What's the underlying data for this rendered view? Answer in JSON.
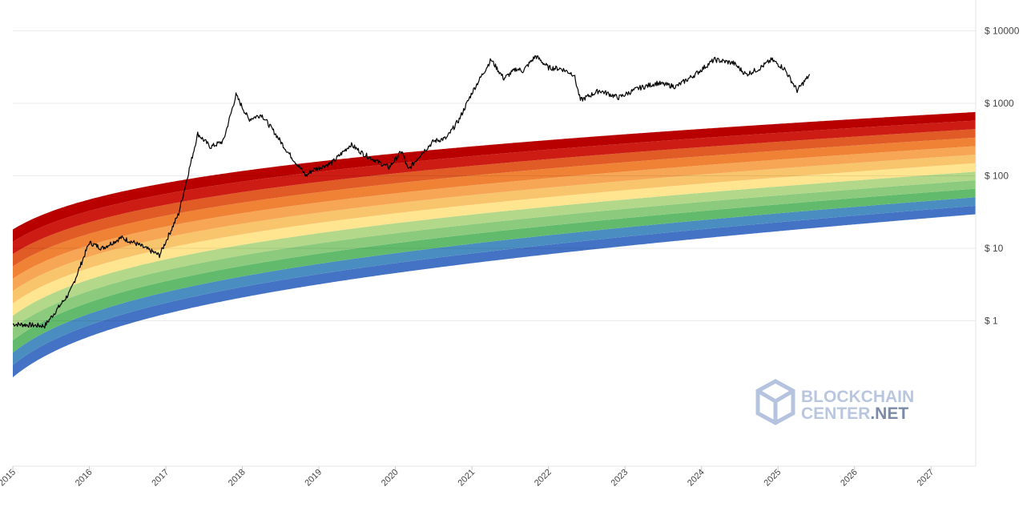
{
  "chart_data": {
    "type": "line",
    "title": "",
    "xlabel": "",
    "ylabel": "",
    "y_scale": "log",
    "y_ticks": [
      {
        "value": 10000,
        "label": "$ 10000"
      },
      {
        "value": 1000,
        "label": "$ 1000"
      },
      {
        "value": 100,
        "label": "$ 100"
      },
      {
        "value": 10,
        "label": "$ 10"
      },
      {
        "value": 1,
        "label": "$ 1"
      }
    ],
    "x_ticks": [
      "2015",
      "2016",
      "2017",
      "2018",
      "2019",
      "2020",
      "2021",
      "2022",
      "2023",
      "2024",
      "2025",
      "2026",
      "2027"
    ],
    "x_range": [
      "2015-01",
      "2027-08"
    ],
    "grid": "horizontal",
    "rainbow_bands": [
      "#4472c4",
      "#4a8ec1",
      "#62bb6d",
      "#8ccb7d",
      "#b4d88a",
      "#ffe58f",
      "#f8c46c",
      "#f6a654",
      "#f08235",
      "#e05b25",
      "#cc1c13",
      "#b90000"
    ],
    "series": [
      {
        "color": "#000000",
        "x": [
          "2015-01",
          "2015-06",
          "2015-10",
          "2016-01",
          "2016-03",
          "2016-06",
          "2016-08",
          "2016-12",
          "2017-03",
          "2017-06",
          "2017-08",
          "2017-10",
          "2017-12",
          "2018-02",
          "2018-04",
          "2018-06",
          "2018-08",
          "2018-11",
          "2018-12",
          "2019-03",
          "2019-06",
          "2019-08",
          "2019-10",
          "2019-12",
          "2020-02",
          "2020-03",
          "2020-05",
          "2020-07",
          "2020-09",
          "2020-11",
          "2021-01",
          "2021-02",
          "2021-04",
          "2021-06",
          "2021-08",
          "2021-09",
          "2021-11",
          "2022-01",
          "2022-03",
          "2022-05",
          "2022-06",
          "2022-09",
          "2022-12",
          "2023-03",
          "2023-06",
          "2023-09",
          "2023-12",
          "2024-03",
          "2024-06",
          "2024-08",
          "2024-10",
          "2024-12",
          "2025-02",
          "2025-04",
          "2025-06"
        ],
        "values": [
          0.9,
          0.85,
          2.5,
          12,
          10,
          14,
          12,
          8,
          30,
          380,
          250,
          300,
          1300,
          600,
          700,
          400,
          220,
          100,
          120,
          150,
          270,
          200,
          160,
          130,
          220,
          120,
          200,
          300,
          330,
          600,
          1400,
          2000,
          4000,
          2200,
          3000,
          2800,
          4500,
          3100,
          3000,
          2500,
          1100,
          1500,
          1200,
          1600,
          1900,
          1700,
          2500,
          4000,
          3600,
          2500,
          3000,
          4000,
          3000,
          1500,
          2500
        ]
      }
    ]
  },
  "watermark": {
    "line1": "BLOCKCHAIN",
    "line2a": "CENTER",
    "line2b": ".NET"
  }
}
